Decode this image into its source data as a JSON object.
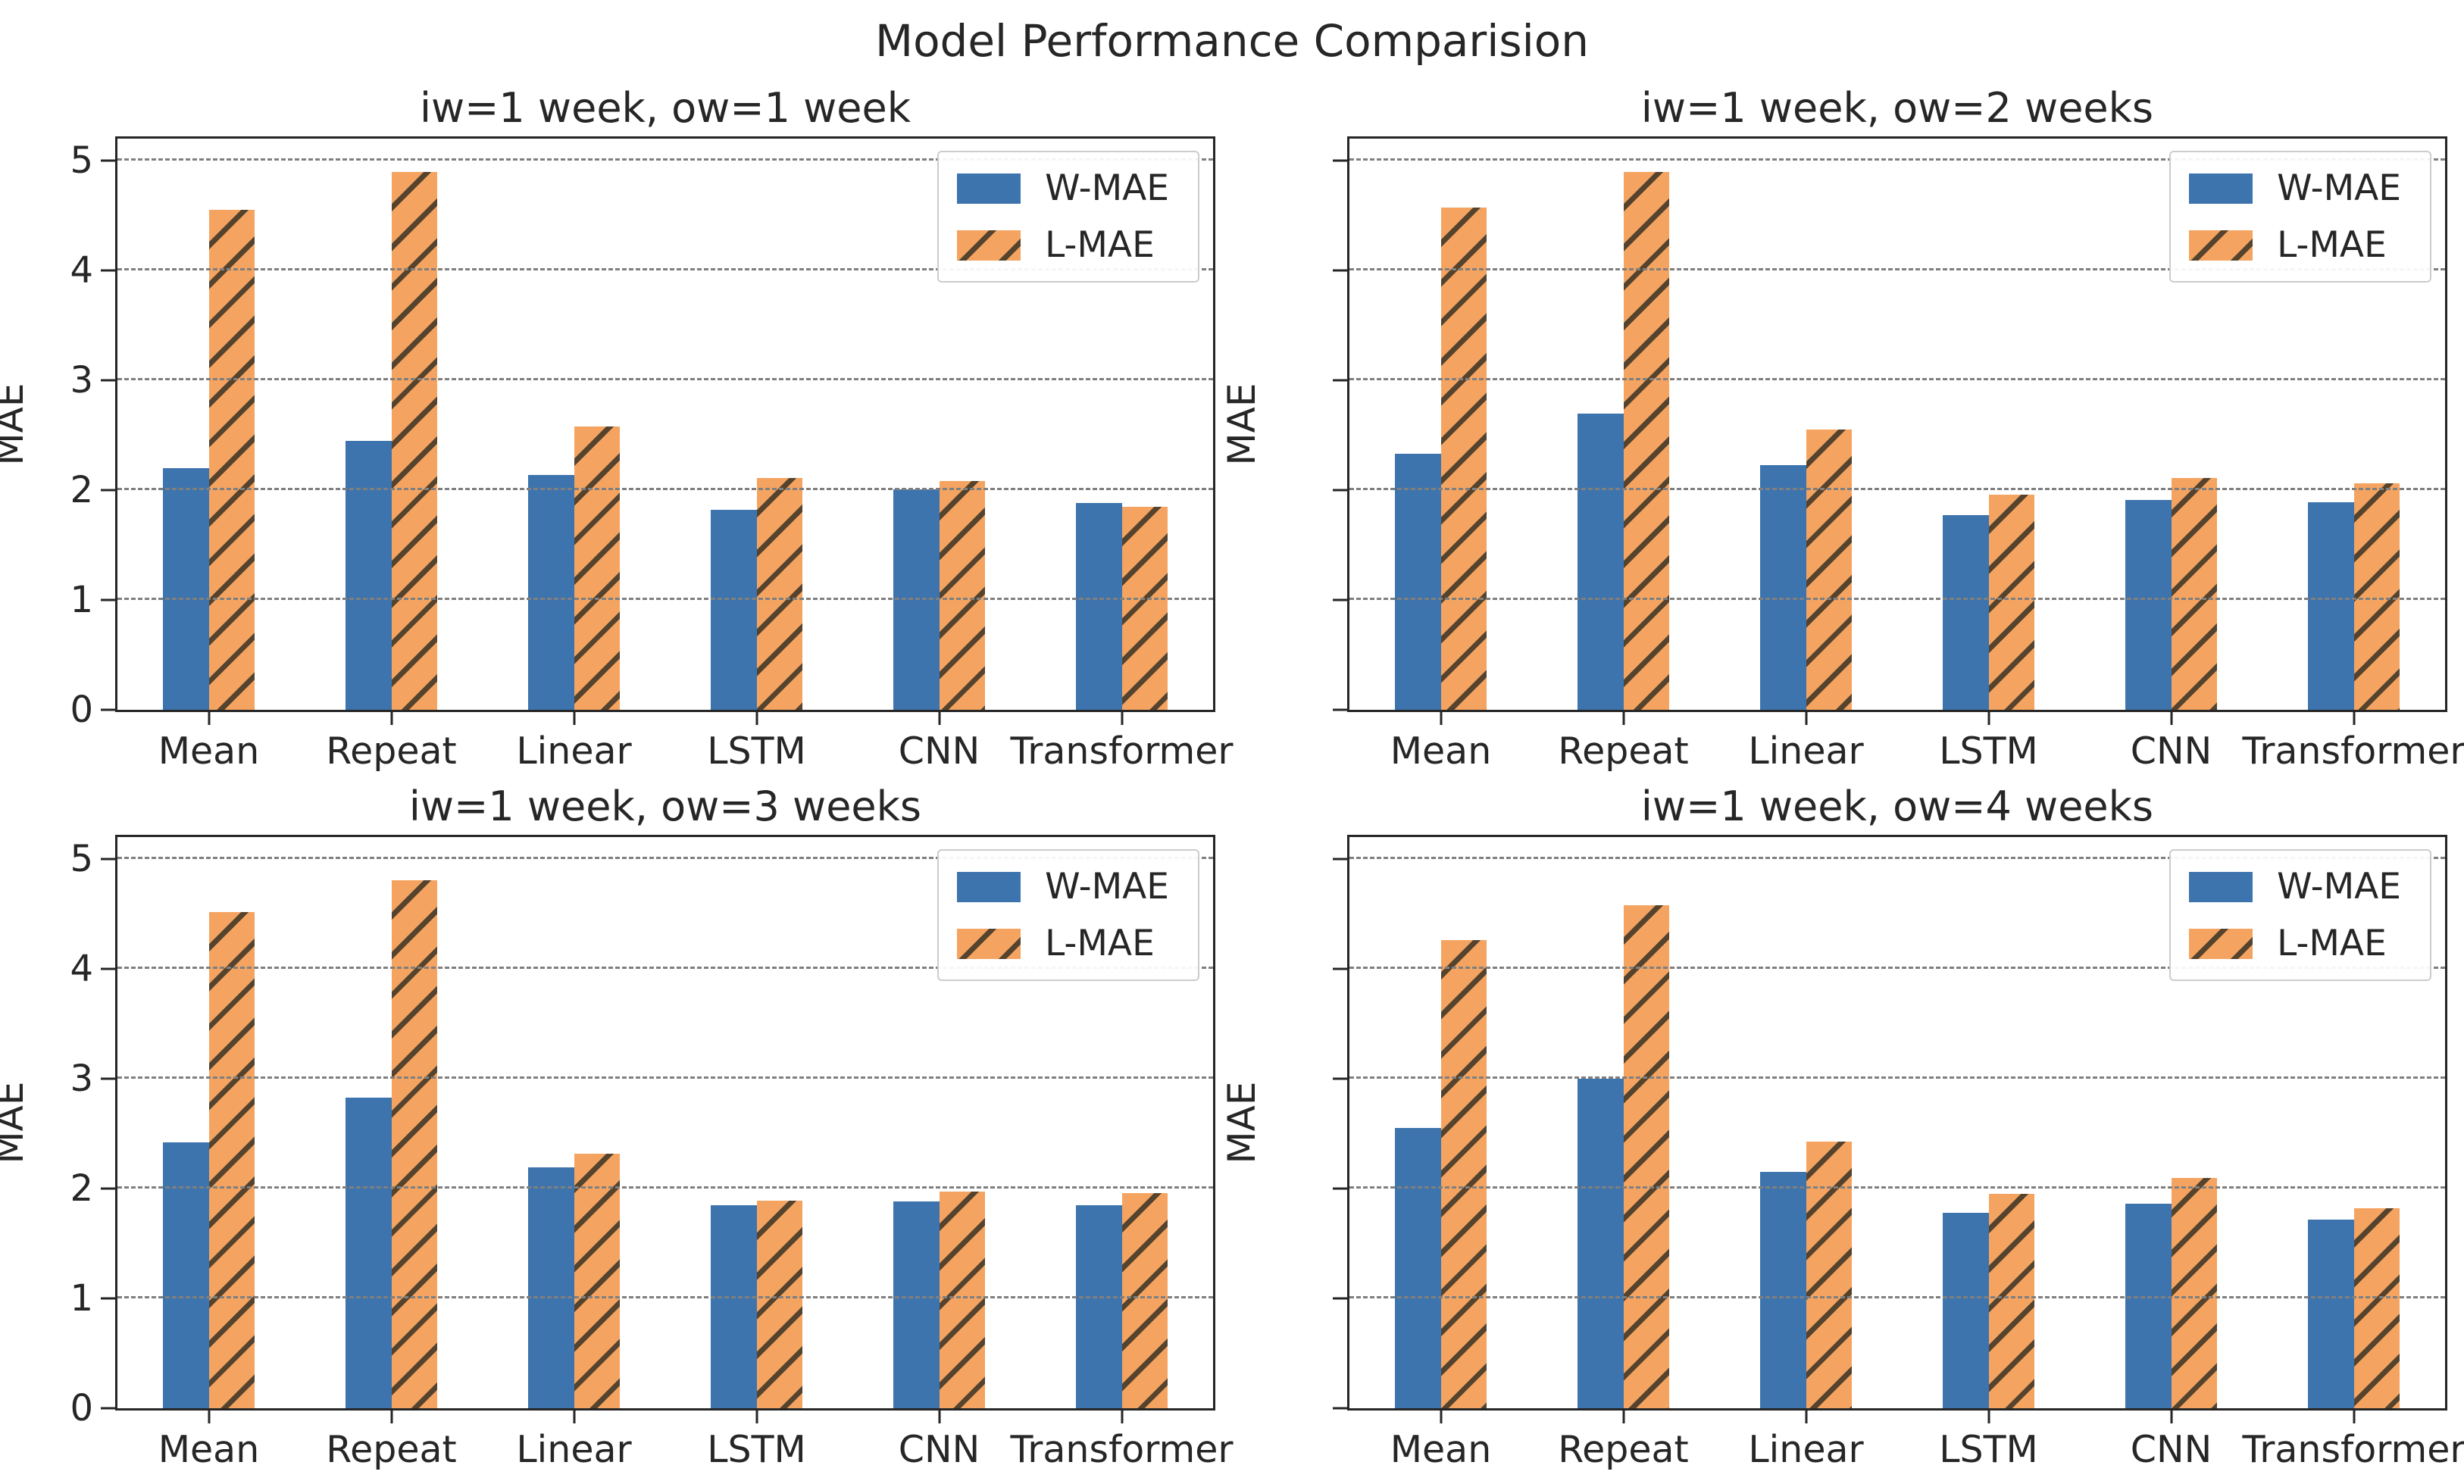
{
  "figure_title": "Model Performance Comparision",
  "colors": {
    "w_mae_bar": "#3d74ad",
    "l_mae_bar": "#f4a460",
    "hatch_line": "#55432e",
    "gridline": "#7f7f7f",
    "axis": "#262626",
    "legend_border": "#cccccc"
  },
  "legend": {
    "entries": [
      {
        "label": "W-MAE",
        "swatch": "solid-blue"
      },
      {
        "label": "L-MAE",
        "swatch": "hatched-orange"
      }
    ]
  },
  "chart_data": [
    {
      "type": "bar",
      "title": "iw=1 week, ow=1 week",
      "ylabel": "MAE",
      "ylim": [
        0,
        5.2
      ],
      "yticks": [
        0,
        1,
        2,
        3,
        4,
        5
      ],
      "show_ytick_labels": true,
      "grid": "horizontal-dashed",
      "legend_position": "upper-right",
      "categories": [
        "Mean",
        "Repeat",
        "Linear",
        "LSTM",
        "CNN",
        "Transformer"
      ],
      "series": [
        {
          "name": "W-MAE",
          "values": [
            2.2,
            2.45,
            2.14,
            1.82,
            2.01,
            1.88
          ]
        },
        {
          "name": "L-MAE",
          "values": [
            4.55,
            4.9,
            2.58,
            2.11,
            2.08,
            1.85
          ]
        }
      ]
    },
    {
      "type": "bar",
      "title": "iw=1 week, ow=2 weeks",
      "ylabel": "MAE",
      "ylim": [
        0,
        5.2
      ],
      "yticks": [
        0,
        1,
        2,
        3,
        4,
        5
      ],
      "show_ytick_labels": false,
      "grid": "horizontal-dashed",
      "legend_position": "upper-right",
      "categories": [
        "Mean",
        "Repeat",
        "Linear",
        "LSTM",
        "CNN",
        "Transformer"
      ],
      "series": [
        {
          "name": "W-MAE",
          "values": [
            2.33,
            2.7,
            2.23,
            1.77,
            1.91,
            1.89
          ]
        },
        {
          "name": "L-MAE",
          "values": [
            4.57,
            4.9,
            2.55,
            1.96,
            2.11,
            2.06
          ]
        }
      ]
    },
    {
      "type": "bar",
      "title": "iw=1 week, ow=3 weeks",
      "ylabel": "MAE",
      "ylim": [
        0,
        5.2
      ],
      "yticks": [
        0,
        1,
        2,
        3,
        4,
        5
      ],
      "show_ytick_labels": true,
      "grid": "horizontal-dashed",
      "legend_position": "upper-right",
      "categories": [
        "Mean",
        "Repeat",
        "Linear",
        "LSTM",
        "CNN",
        "Transformer"
      ],
      "series": [
        {
          "name": "W-MAE",
          "values": [
            2.42,
            2.83,
            2.19,
            1.85,
            1.88,
            1.85
          ]
        },
        {
          "name": "L-MAE",
          "values": [
            4.52,
            4.81,
            2.32,
            1.89,
            1.97,
            1.96
          ]
        }
      ]
    },
    {
      "type": "bar",
      "title": "iw=1 week, ow=4 weeks",
      "ylabel": "MAE",
      "ylim": [
        0,
        5.2
      ],
      "yticks": [
        0,
        1,
        2,
        3,
        4,
        5
      ],
      "show_ytick_labels": false,
      "grid": "horizontal-dashed",
      "legend_position": "upper-right",
      "categories": [
        "Mean",
        "Repeat",
        "Linear",
        "LSTM",
        "CNN",
        "Transformer"
      ],
      "series": [
        {
          "name": "W-MAE",
          "values": [
            2.55,
            3.0,
            2.15,
            1.78,
            1.86,
            1.72
          ]
        },
        {
          "name": "L-MAE",
          "values": [
            4.26,
            4.58,
            2.43,
            1.95,
            2.1,
            1.82
          ]
        }
      ]
    }
  ]
}
